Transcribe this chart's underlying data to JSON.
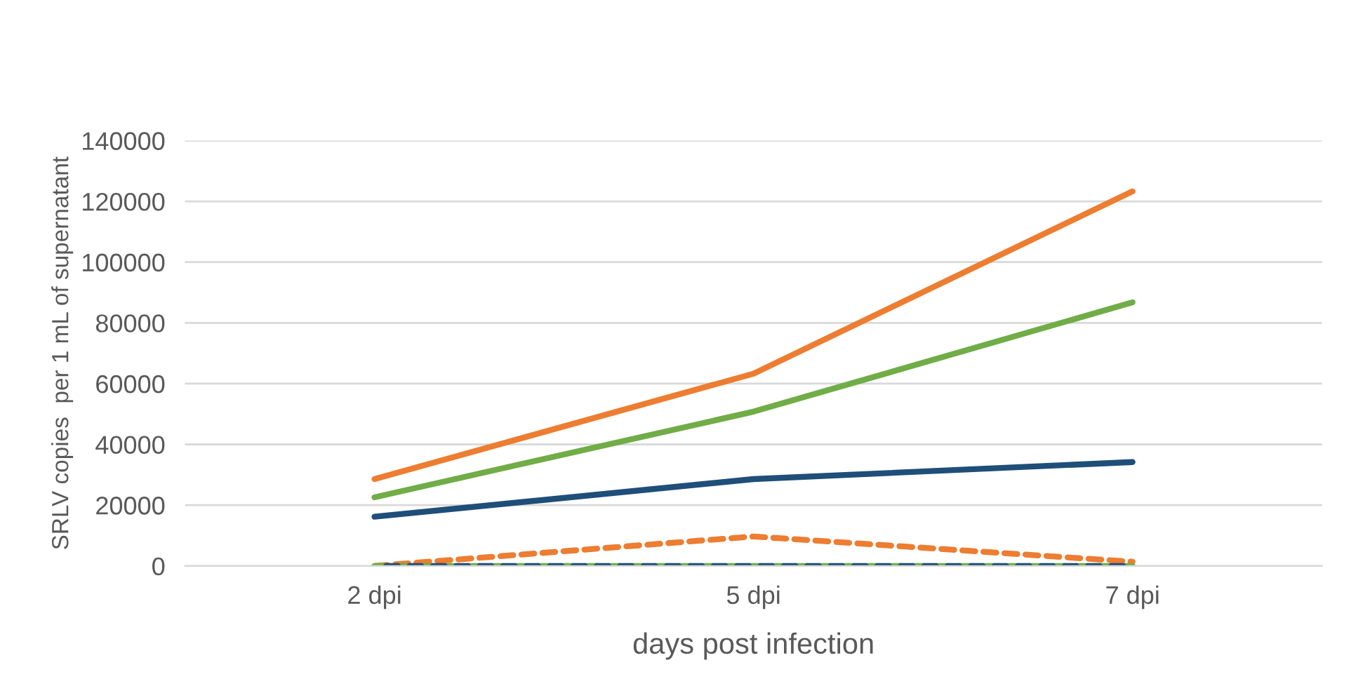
{
  "chart_data": {
    "type": "line",
    "xlabel": "days post infection",
    "ylabel": "SRLV copies  per 1 mL of supernatant",
    "categories": [
      "2 dpi",
      "5 dpi",
      "7 dpi"
    ],
    "series": [
      {
        "color": "#ed7d31",
        "values": [
          28600,
          63300,
          123300
        ],
        "line_style": "solid"
      },
      {
        "color": "#70ad47",
        "values": [
          22600,
          50800,
          86800
        ],
        "line_style": "solid"
      },
      {
        "color": "#1f4e79",
        "values": [
          16200,
          28600,
          34200
        ],
        "line_style": "solid"
      },
      {
        "color": "#ed7d31",
        "values": [
          0,
          9700,
          1400
        ],
        "line_style": "dashed"
      },
      {
        "color": "#70ad47",
        "values": [
          0,
          0,
          0
        ],
        "line_style": "dashed"
      },
      {
        "color": "#1f4e79",
        "values": [
          0,
          0,
          0
        ],
        "line_style": "dashed"
      }
    ],
    "ylim": [
      0,
      140000
    ],
    "yticks": [
      0,
      20000,
      40000,
      60000,
      80000,
      100000,
      120000,
      140000
    ],
    "grid": "y",
    "legend": false,
    "marker": "none"
  }
}
